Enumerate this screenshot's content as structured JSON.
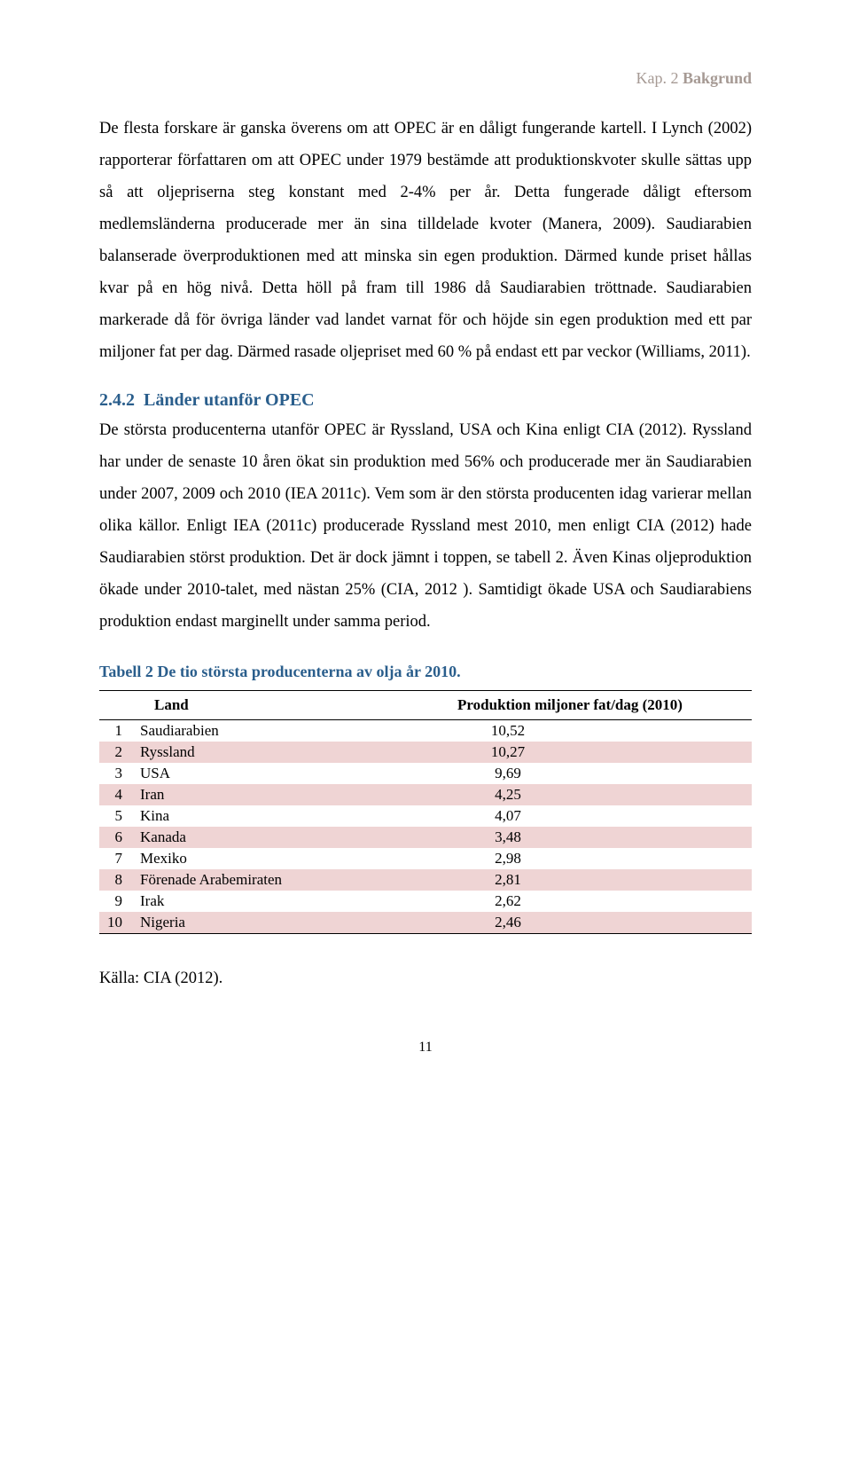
{
  "chapter": {
    "prefix": "Kap. 2 ",
    "title": "Bakgrund"
  },
  "para1": "De flesta forskare är ganska överens om att OPEC är en dåligt fungerande kartell. I Lynch (2002) rapporterar författaren om att OPEC under 1979 bestämde att produktionskvoter skulle sättas upp så att oljepriserna steg konstant med 2-4% per år. Detta fungerade dåligt eftersom medlemsländerna producerade mer än sina tilldelade kvoter (Manera, 2009). Saudiarabien balanserade överproduktionen med att minska sin egen produktion. Därmed kunde priset hållas kvar på en hög nivå. Detta höll på fram till 1986 då Saudiarabien tröttnade. Saudiarabien markerade då för övriga länder vad landet varnat för och höjde sin egen produktion med ett par miljoner fat per dag. Därmed rasade oljepriset med 60 % på endast ett par veckor (Williams, 2011).",
  "section": {
    "number": "2.4.2",
    "title": "Länder utanför OPEC"
  },
  "para2": "De största producenterna utanför OPEC är Ryssland, USA och Kina enligt CIA (2012). Ryssland har under de senaste 10 åren ökat sin produktion med 56% och producerade mer än Saudiarabien under 2007, 2009 och 2010 (IEA 2011c). Vem som är den största producenten idag varierar mellan olika källor. Enligt IEA (2011c) producerade Ryssland mest 2010, men enligt CIA (2012) hade Saudiarabien störst produktion. Det är dock jämnt i toppen, se tabell 2. Även Kinas oljeproduktion ökade under 2010-talet, med nästan 25% (CIA, 2012 ). Samtidigt ökade USA och Saudiarabiens produktion endast marginellt under samma period.",
  "table": {
    "caption": "Tabell 2 De tio största producenterna av olja år 2010.",
    "columns": {
      "land": "Land",
      "production": "Produktion miljoner fat/dag (2010)"
    },
    "rows": [
      {
        "rank": "1",
        "country": "Saudiarabien",
        "value": "10,52"
      },
      {
        "rank": "2",
        "country": "Ryssland",
        "value": "10,27"
      },
      {
        "rank": "3",
        "country": "USA",
        "value": "9,69"
      },
      {
        "rank": "4",
        "country": "Iran",
        "value": "4,25"
      },
      {
        "rank": "5",
        "country": "Kina",
        "value": "4,07"
      },
      {
        "rank": "6",
        "country": "Kanada",
        "value": "3,48"
      },
      {
        "rank": "7",
        "country": "Mexiko",
        "value": "2,98"
      },
      {
        "rank": "8",
        "country": "Förenade Arabemiraten",
        "value": "2,81"
      },
      {
        "rank": "9",
        "country": "Irak",
        "value": "2,62"
      },
      {
        "rank": "10",
        "country": "Nigeria",
        "value": "2,46"
      }
    ],
    "stripe_color": "#efd4d4",
    "border_color": "#000000"
  },
  "source": "Källa: CIA (2012).",
  "page_number": "11"
}
